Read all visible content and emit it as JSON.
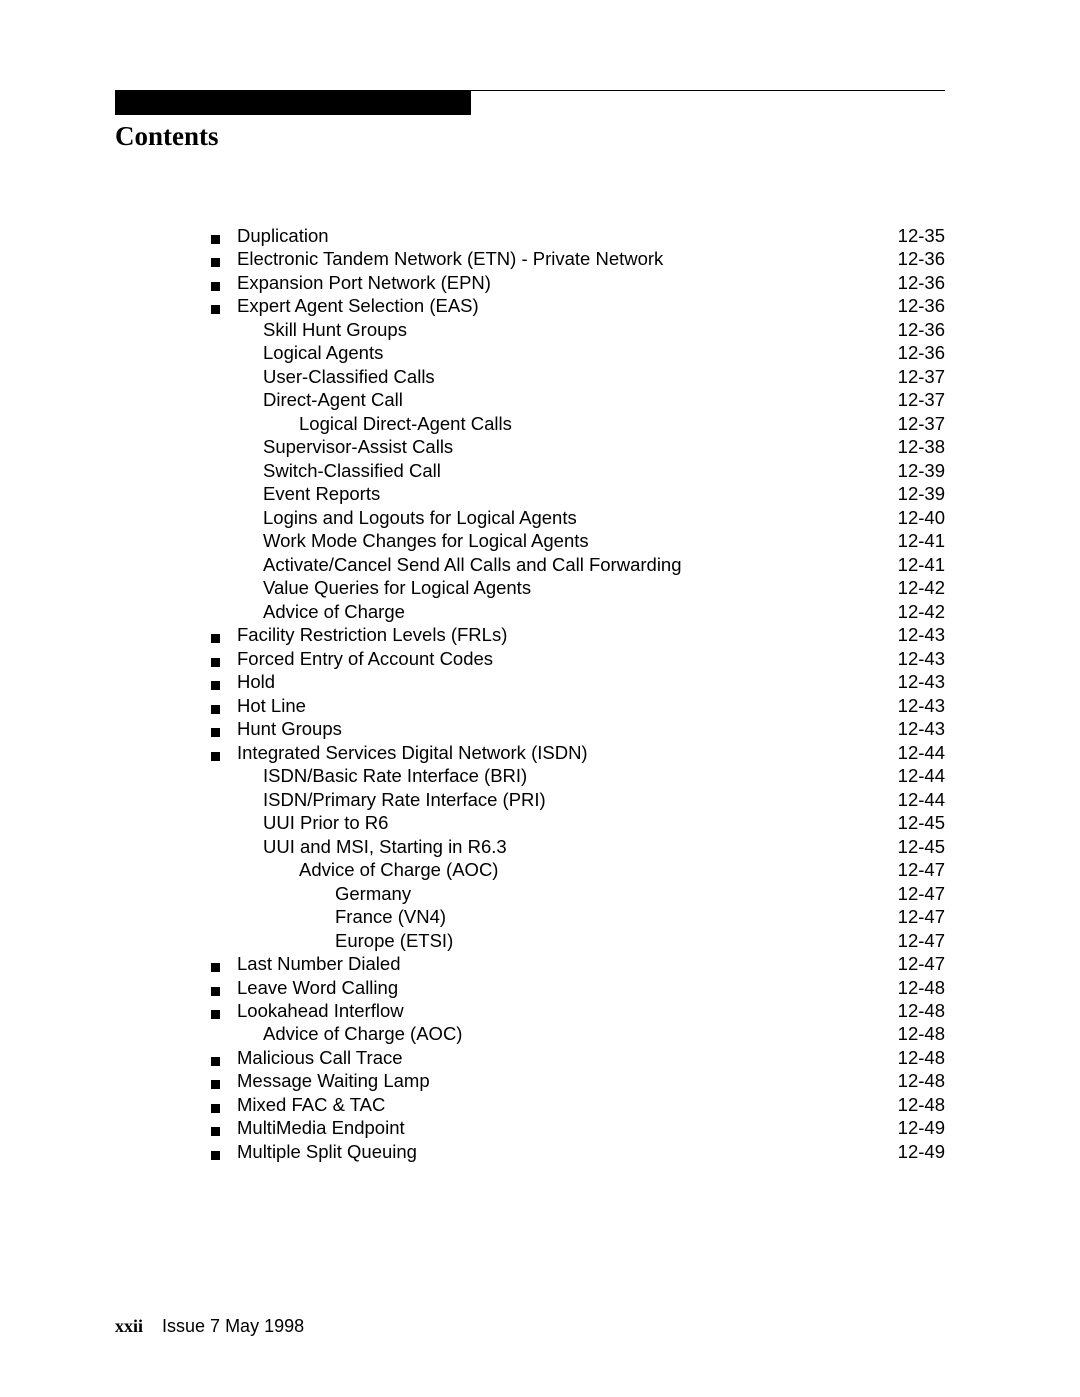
{
  "title": "Contents",
  "footer": {
    "folio": "xxii",
    "issue": "Issue 7  May 1998"
  },
  "toc": [
    {
      "bullet": true,
      "indent": 0,
      "label": "Duplication",
      "page": "12-35"
    },
    {
      "bullet": true,
      "indent": 0,
      "label": "Electronic Tandem Network (ETN) - Private Network",
      "page": "12-36"
    },
    {
      "bullet": true,
      "indent": 0,
      "label": "Expansion Port Network (EPN)",
      "page": "12-36"
    },
    {
      "bullet": true,
      "indent": 0,
      "label": "Expert Agent Selection (EAS)",
      "page": "12-36"
    },
    {
      "bullet": false,
      "indent": 1,
      "label": "Skill Hunt Groups",
      "page": "12-36"
    },
    {
      "bullet": false,
      "indent": 1,
      "label": "Logical Agents",
      "page": "12-36"
    },
    {
      "bullet": false,
      "indent": 1,
      "label": "User-Classified Calls",
      "page": "12-37"
    },
    {
      "bullet": false,
      "indent": 1,
      "label": "Direct-Agent Call",
      "page": "12-37"
    },
    {
      "bullet": false,
      "indent": 2,
      "label": "Logical Direct-Agent Calls",
      "page": "12-37"
    },
    {
      "bullet": false,
      "indent": 1,
      "label": "Supervisor-Assist Calls",
      "page": "12-38"
    },
    {
      "bullet": false,
      "indent": 1,
      "label": "Switch-Classified Call",
      "page": "12-39"
    },
    {
      "bullet": false,
      "indent": 1,
      "label": "Event Reports",
      "page": "12-39"
    },
    {
      "bullet": false,
      "indent": 1,
      "label": "Logins and Logouts for Logical Agents",
      "page": "12-40"
    },
    {
      "bullet": false,
      "indent": 1,
      "label": "Work Mode Changes for Logical Agents",
      "page": "12-41"
    },
    {
      "bullet": false,
      "indent": 1,
      "label": "Activate/Cancel Send All Calls and Call Forwarding",
      "page": "12-41"
    },
    {
      "bullet": false,
      "indent": 1,
      "label": "Value Queries for Logical Agents",
      "page": "12-42"
    },
    {
      "bullet": false,
      "indent": 1,
      "label": "Advice of Charge",
      "page": "12-42"
    },
    {
      "bullet": true,
      "indent": 0,
      "label": "Facility Restriction Levels (FRLs)",
      "page": "12-43"
    },
    {
      "bullet": true,
      "indent": 0,
      "label": "Forced Entry of Account Codes",
      "page": "12-43"
    },
    {
      "bullet": true,
      "indent": 0,
      "label": "Hold",
      "page": "12-43"
    },
    {
      "bullet": true,
      "indent": 0,
      "label": "Hot Line",
      "page": "12-43"
    },
    {
      "bullet": true,
      "indent": 0,
      "label": "Hunt Groups",
      "page": "12-43"
    },
    {
      "bullet": true,
      "indent": 0,
      "label": "Integrated Services Digital Network (ISDN)",
      "page": "12-44"
    },
    {
      "bullet": false,
      "indent": 1,
      "label": "ISDN/Basic Rate Interface (BRI)",
      "page": "12-44"
    },
    {
      "bullet": false,
      "indent": 1,
      "label": "ISDN/Primary Rate Interface (PRI)",
      "page": "12-44"
    },
    {
      "bullet": false,
      "indent": 1,
      "label": "UUI Prior to R6",
      "page": "12-45"
    },
    {
      "bullet": false,
      "indent": 1,
      "label": "UUI and MSI, Starting in R6.3",
      "page": "12-45"
    },
    {
      "bullet": false,
      "indent": 2,
      "label": "Advice of Charge (AOC)",
      "page": "12-47"
    },
    {
      "bullet": false,
      "indent": 3,
      "label": "Germany",
      "page": "12-47"
    },
    {
      "bullet": false,
      "indent": 3,
      "label": "France (VN4)",
      "page": "12-47"
    },
    {
      "bullet": false,
      "indent": 3,
      "label": "Europe (ETSI)",
      "page": "12-47"
    },
    {
      "bullet": true,
      "indent": 0,
      "label": "Last Number Dialed",
      "page": "12-47"
    },
    {
      "bullet": true,
      "indent": 0,
      "label": "Leave Word Calling",
      "page": "12-48"
    },
    {
      "bullet": true,
      "indent": 0,
      "label": "Lookahead Interflow",
      "page": "12-48"
    },
    {
      "bullet": false,
      "indent": 1,
      "label": "Advice of Charge (AOC)",
      "page": "12-48"
    },
    {
      "bullet": true,
      "indent": 0,
      "label": "Malicious Call Trace",
      "page": "12-48"
    },
    {
      "bullet": true,
      "indent": 0,
      "label": "Message Waiting Lamp",
      "page": "12-48"
    },
    {
      "bullet": true,
      "indent": 0,
      "label": "Mixed FAC & TAC",
      "page": "12-48"
    },
    {
      "bullet": true,
      "indent": 0,
      "label": "MultiMedia Endpoint",
      "page": "12-49"
    },
    {
      "bullet": true,
      "indent": 0,
      "label": "Multiple Split Queuing",
      "page": "12-49"
    }
  ]
}
